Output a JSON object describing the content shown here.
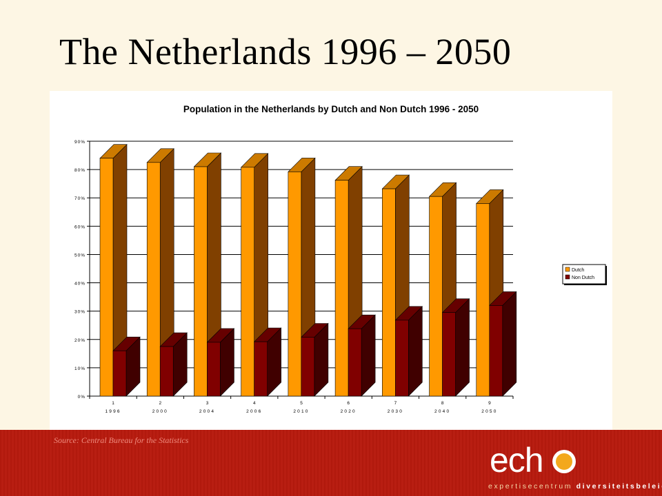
{
  "slide": {
    "title": "The Netherlands 1996 – 2050",
    "source": "Source: Central Bureau for the Statistics"
  },
  "logo": {
    "word": "ech",
    "tagline_part1": "expertisecentrum",
    "tagline_part2": "diversiteitsbeleid"
  },
  "chart_data": {
    "type": "bar",
    "three_d": true,
    "title": "Population in the Netherlands by Dutch and Non Dutch 1996 - 2050",
    "categories": [
      "1",
      "2",
      "3",
      "4",
      "5",
      "6",
      "7",
      "8",
      "9"
    ],
    "category_sublabels": [
      "1996",
      "2000",
      "2004",
      "2006",
      "2010",
      "2020",
      "2030",
      "2040",
      "2050"
    ],
    "series": [
      {
        "name": "Dutch",
        "values": [
          84,
          82.5,
          81,
          80.8,
          79.2,
          76.2,
          73.2,
          70.5,
          68
        ],
        "color": "#ff9900",
        "side_color": "#804000",
        "top_color": "#cc7a00"
      },
      {
        "name": "Non Dutch",
        "values": [
          16,
          17.5,
          19,
          19.2,
          20.8,
          23.8,
          26.8,
          29.5,
          32
        ],
        "color": "#800000",
        "side_color": "#400000",
        "top_color": "#660000"
      }
    ],
    "y_ticks": [
      "0%",
      "10%",
      "20%",
      "30%",
      "40%",
      "50%",
      "60%",
      "70%",
      "80%",
      "90%"
    ],
    "ylim": [
      0,
      90
    ],
    "grid": true,
    "legend_position": "right"
  }
}
